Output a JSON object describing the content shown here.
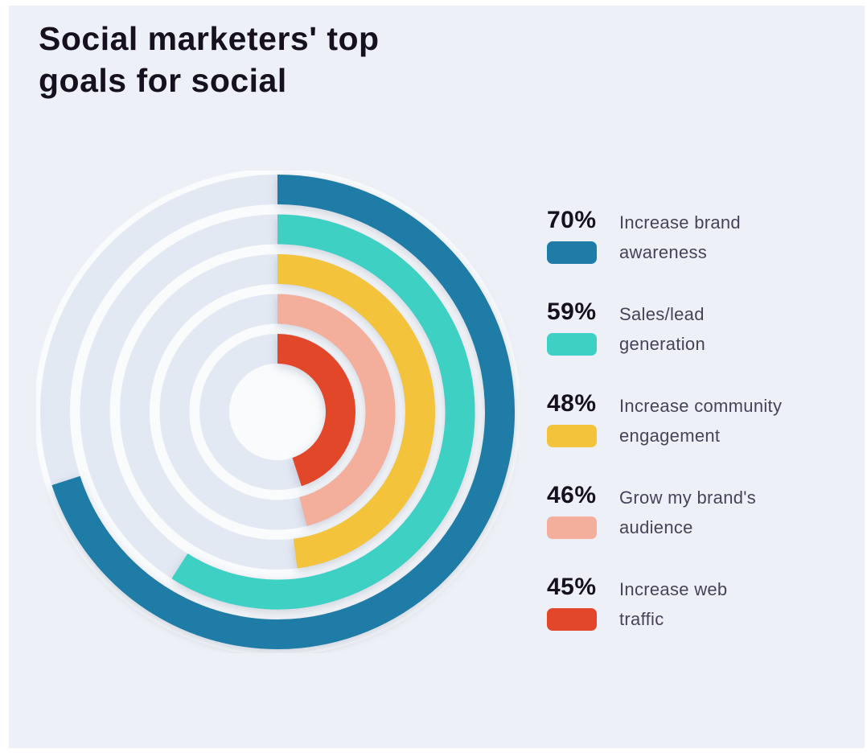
{
  "page": {
    "background_color": "#edf1f7",
    "border_color": "#ffffff"
  },
  "chart_data": {
    "type": "radial-bar",
    "title": "Social marketers' top goals for social",
    "title_lines": [
      "Social marketers' top",
      "goals for social"
    ],
    "unit": "%",
    "value_range": [
      0,
      100
    ],
    "start_angle": "12 o'clock, clockwise",
    "track_color": "#e3e9f3",
    "separator_color": "#f9fbfd",
    "title_color": "#17111f",
    "label_color": "#474259",
    "legend_position": "right",
    "series": [
      {
        "label": "Increase brand awareness",
        "label_lines": [
          "Increase brand",
          "awareness"
        ],
        "value": 70,
        "value_label": "70%",
        "color": "#1f7ca6"
      },
      {
        "label": "Sales/lead generation",
        "label_lines": [
          "Sales/lead",
          "generation"
        ],
        "value": 59,
        "value_label": "59%",
        "color": "#3fd0c4"
      },
      {
        "label": "Increase community engagement",
        "label_lines": [
          "Increase community",
          "engagement"
        ],
        "value": 48,
        "value_label": "48%",
        "color": "#f3c33c"
      },
      {
        "label": "Grow my brand's audience",
        "label_lines": [
          "Grow my brand's",
          "audience"
        ],
        "value": 46,
        "value_label": "46%",
        "color": "#f3ae9c"
      },
      {
        "label": "Increase web traffic",
        "label_lines": [
          "Increase web",
          "traffic"
        ],
        "value": 45,
        "value_label": "45%",
        "color": "#e2472a"
      }
    ]
  }
}
